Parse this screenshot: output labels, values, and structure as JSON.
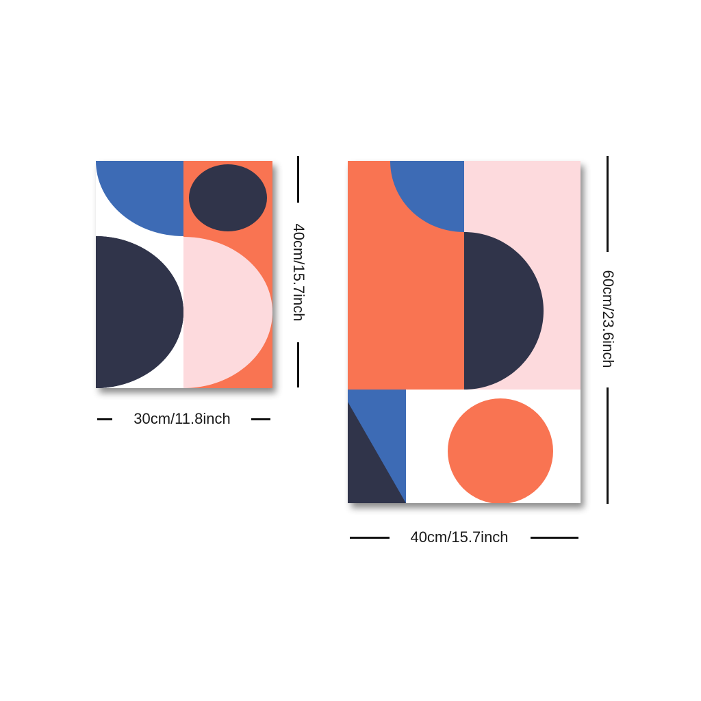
{
  "colors": {
    "blue": "#3d6bb5",
    "navy": "#30344a",
    "coral": "#f97452",
    "pink": "#fddadd",
    "white": "#ffffff"
  },
  "small_print": {
    "height_label": "40cm/15.7inch",
    "width_label": "30cm/11.8inch"
  },
  "large_print": {
    "height_label": "60cm/23.6inch",
    "width_label": "40cm/15.7inch"
  }
}
